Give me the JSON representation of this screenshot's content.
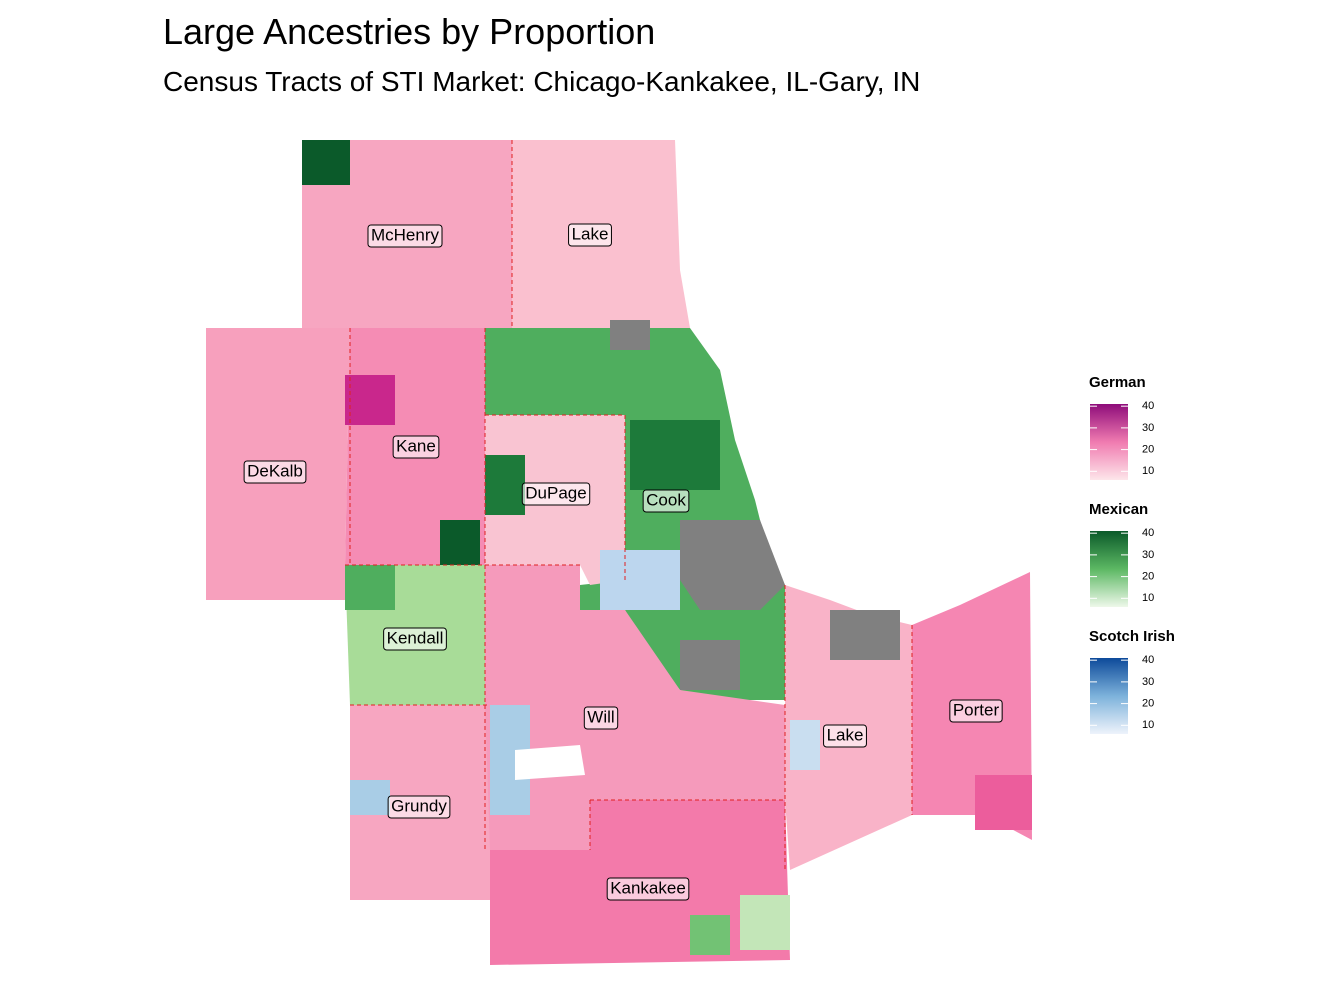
{
  "title": "Large Ancestries by Proportion",
  "subtitle": "Census Tracts of STI Market: Chicago-Kankakee, IL-Gary, IN",
  "counties": [
    "McHenry",
    "Lake",
    "DeKalb",
    "Kane",
    "DuPage",
    "Cook",
    "Kendall",
    "Will",
    "Lake",
    "Porter",
    "Grundy",
    "Kankakee"
  ],
  "legend": [
    {
      "title": "German",
      "lim": [
        6,
        41
      ],
      "ticks": [
        10,
        20,
        30,
        40
      ],
      "colors": [
        "#fde6ea",
        "#f07bb0",
        "#8e0c7a"
      ]
    },
    {
      "title": "Mexican",
      "lim": [
        6,
        41
      ],
      "ticks": [
        10,
        20,
        30,
        40
      ],
      "colors": [
        "#eef8ea",
        "#5cb863",
        "#0b5a2a"
      ]
    },
    {
      "title": "Scotch Irish",
      "lim": [
        6,
        41
      ],
      "ticks": [
        10,
        20,
        30,
        40
      ],
      "colors": [
        "#eef3fb",
        "#7db2db",
        "#0d4a9a"
      ]
    }
  ]
}
